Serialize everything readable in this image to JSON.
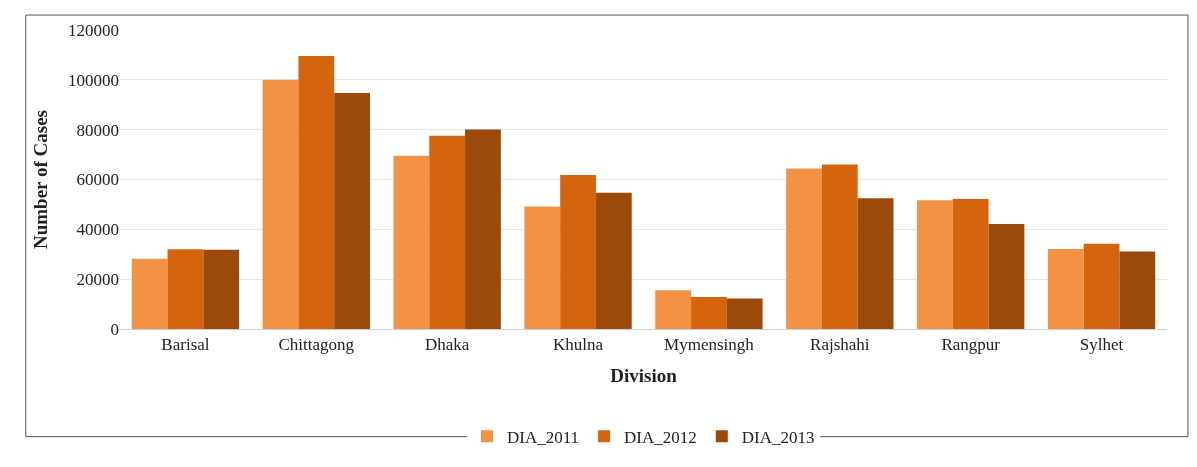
{
  "chart_data": {
    "type": "bar",
    "xlabel": "Division",
    "ylabel": "Number of Cases",
    "categories": [
      "Barisal",
      "Chittagong",
      "Dhaka",
      "Khulna",
      "Mymensingh",
      "Rajshahi",
      "Rangpur",
      "Sylhet"
    ],
    "series": [
      {
        "name": "DIA_2011",
        "color": "#f39245",
        "values": [
          28200,
          100000,
          69500,
          49200,
          15600,
          64400,
          51700,
          32100
        ]
      },
      {
        "name": "DIA_2012",
        "color": "#d5640f",
        "values": [
          32000,
          109600,
          77600,
          61800,
          12800,
          66000,
          52200,
          34200
        ]
      },
      {
        "name": "DIA_2013",
        "color": "#9c4a0c",
        "values": [
          31800,
          94700,
          80100,
          54700,
          12200,
          52500,
          42100,
          31100
        ]
      }
    ],
    "ylim": [
      0,
      120000
    ],
    "yticks": [
      0,
      20000,
      40000,
      60000,
      80000,
      100000,
      120000
    ],
    "grid": "y",
    "legend": "bottom"
  }
}
